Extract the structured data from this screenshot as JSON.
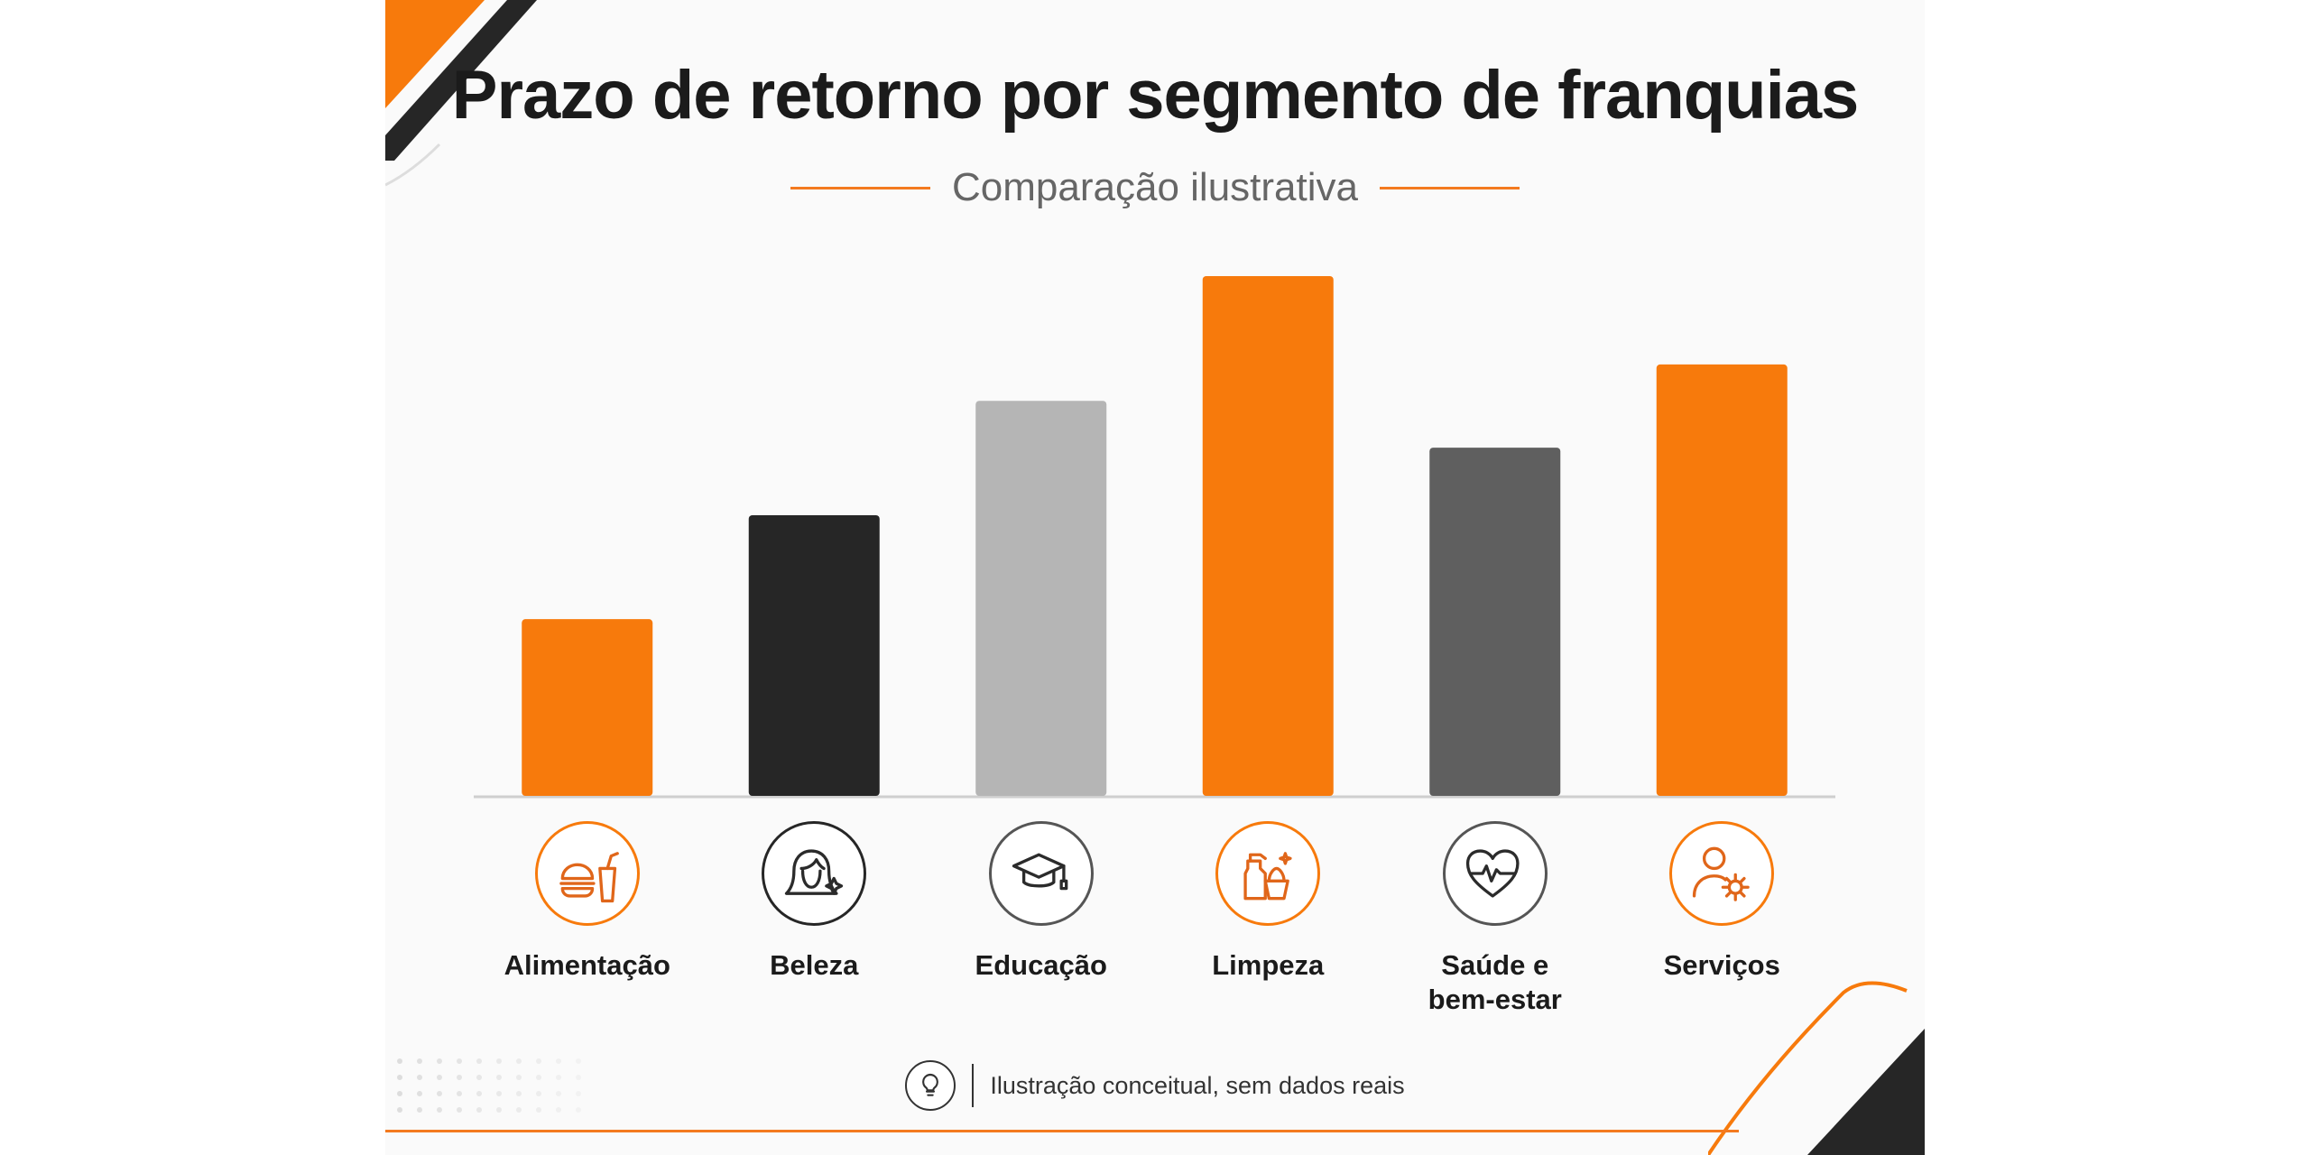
{
  "title": "Prazo de retorno por segmento de franquias",
  "subtitle": "Comparação ilustrativa",
  "footnote": "Ilustração conceitual, sem dados reais",
  "colors": {
    "orange": "#f77a0c",
    "black": "#262626",
    "light_gray": "#b5b5b5",
    "dark_gray": "#5f5f5f",
    "accent_line": "#f37a1f"
  },
  "chart_data": {
    "type": "bar",
    "title": "Prazo de retorno por segmento de franquias",
    "subtitle": "Comparação ilustrativa",
    "xlabel": "",
    "ylabel": "",
    "ylim": [
      0,
      100
    ],
    "grid": false,
    "legend": "none",
    "categories": [
      "Alimentação",
      "Beleza",
      "Educação",
      "Limpeza",
      "Saúde e bem-estar",
      "Serviços"
    ],
    "label_lines": [
      [
        "Alimentação"
      ],
      [
        "Beleza"
      ],
      [
        "Educação"
      ],
      [
        "Limpeza"
      ],
      [
        "Saúde e",
        "bem-estar"
      ],
      [
        "Serviços"
      ]
    ],
    "values": [
      34,
      54,
      76,
      100,
      67,
      83
    ],
    "bar_colors": [
      "orange",
      "black",
      "light_gray",
      "orange",
      "dark_gray",
      "orange"
    ],
    "icons": [
      "burger-drink-icon",
      "woman-face-icon",
      "graduation-cap-icon",
      "cleaning-spray-icon",
      "heart-pulse-icon",
      "person-gear-icon"
    ]
  }
}
